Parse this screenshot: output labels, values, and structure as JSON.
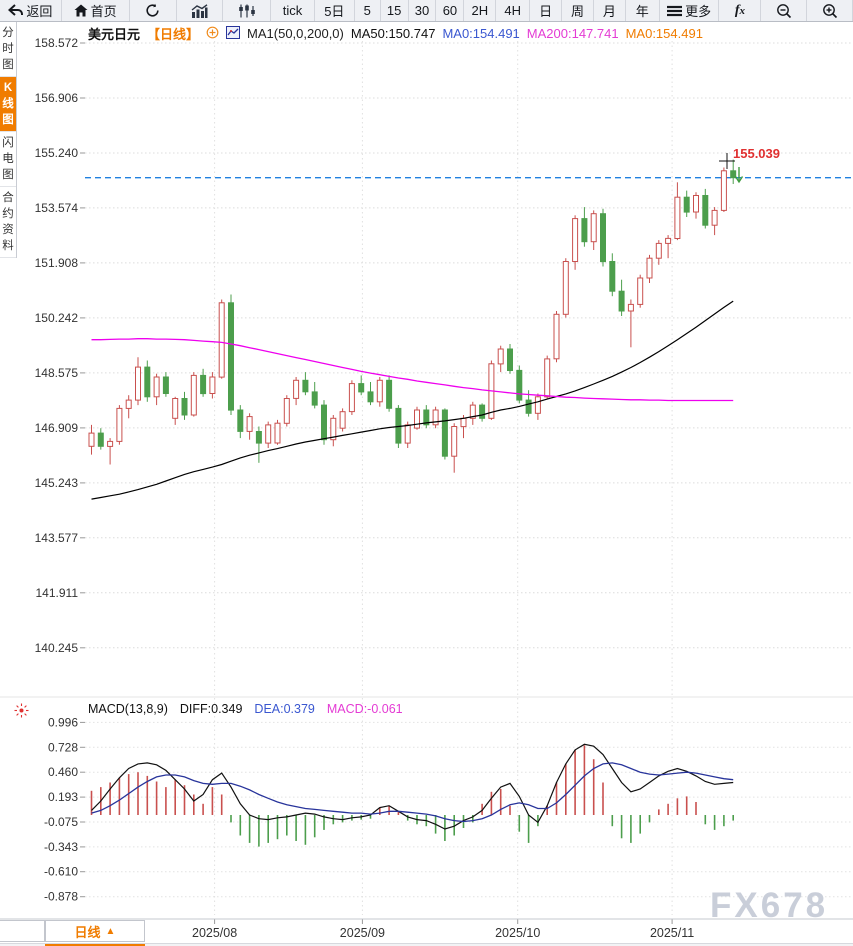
{
  "toolbar": {
    "items": [
      {
        "name": "back-button",
        "icon": "back-arrow",
        "label": "返回"
      },
      {
        "name": "home-button",
        "icon": "home",
        "label": "首页"
      },
      {
        "name": "refresh-button",
        "icon": "refresh",
        "label": ""
      },
      {
        "name": "line-chart-button",
        "icon": "bar-chart",
        "label": ""
      },
      {
        "name": "candle-chart-button",
        "icon": "candle-chart",
        "label": ""
      },
      {
        "name": "interval-tick",
        "label": "tick"
      },
      {
        "name": "interval-5d",
        "label": "5日"
      },
      {
        "name": "interval-5",
        "label": "5"
      },
      {
        "name": "interval-15",
        "label": "15"
      },
      {
        "name": "interval-30",
        "label": "30"
      },
      {
        "name": "interval-60",
        "label": "60"
      },
      {
        "name": "interval-2h",
        "label": "2H"
      },
      {
        "name": "interval-4h",
        "label": "4H"
      },
      {
        "name": "interval-day",
        "label": "日"
      },
      {
        "name": "interval-week",
        "label": "周"
      },
      {
        "name": "interval-month",
        "label": "月"
      },
      {
        "name": "interval-year",
        "label": "年"
      },
      {
        "name": "more-button",
        "icon": "menu",
        "label": "更多"
      },
      {
        "name": "indicator-button",
        "icon": "fx",
        "label": ""
      },
      {
        "name": "zoom-out-button",
        "icon": "zoom-out",
        "label": ""
      },
      {
        "name": "zoom-in-button",
        "icon": "zoom-in",
        "label": ""
      }
    ]
  },
  "symbol_bar": {
    "symbol": "美元日元",
    "period_tag": "【日线】",
    "ma_settings": "MA1(50,0,200,0)",
    "ma50_label": "MA50:150.747",
    "ma0_blue_label": "MA0:154.491",
    "ma200_label": "MA200:147.741",
    "ma0_orange_label": "MA0:154.491"
  },
  "sidebar": {
    "items": [
      {
        "label": "分时图",
        "selected": false
      },
      {
        "label": "K线图",
        "selected": true
      },
      {
        "label": "闪电图",
        "selected": false
      },
      {
        "label": "合约资料",
        "selected": false
      }
    ]
  },
  "macd_header": {
    "params": "MACD(13,8,9)",
    "diff": "DIFF:0.349",
    "dea": "DEA:0.379",
    "macd": "MACD:-0.061"
  },
  "bottom_bar": {
    "tab_label": "日线",
    "tab_arrow": "▲"
  },
  "watermark": "FX678",
  "chart_data": {
    "type": "candlestick+macd",
    "title": "美元日元 日线",
    "main": {
      "y_ticks": [
        158.572,
        156.906,
        155.24,
        153.574,
        151.908,
        150.242,
        148.575,
        146.909,
        145.243,
        143.577,
        141.911,
        140.245
      ],
      "last_price": 154.491,
      "high_label": "155.039",
      "high_value": 155.039,
      "up_color": "#c9504e",
      "down_color": "#4c9e4c",
      "ma50_color": "#000000",
      "ma200_color": "#ee00ee",
      "last_price_line_color": "#1f80e0",
      "high_label_color": "#e03030",
      "candles": [
        [
          146.35,
          147.0,
          146.1,
          146.75
        ],
        [
          146.75,
          146.9,
          146.25,
          146.35
        ],
        [
          146.35,
          146.6,
          145.8,
          146.5
        ],
        [
          146.5,
          147.6,
          146.4,
          147.5
        ],
        [
          147.5,
          147.9,
          147.2,
          147.75
        ],
        [
          147.75,
          149.05,
          147.6,
          148.75
        ],
        [
          148.75,
          148.95,
          147.7,
          147.85
        ],
        [
          147.85,
          148.55,
          147.6,
          148.45
        ],
        [
          148.45,
          148.6,
          147.85,
          147.95
        ],
        [
          147.2,
          147.85,
          147.0,
          147.8
        ],
        [
          147.8,
          148.0,
          147.15,
          147.3
        ],
        [
          147.3,
          148.6,
          147.25,
          148.5
        ],
        [
          148.5,
          148.7,
          147.85,
          147.95
        ],
        [
          147.95,
          148.6,
          147.8,
          148.45
        ],
        [
          148.45,
          150.8,
          148.4,
          150.7
        ],
        [
          150.7,
          150.95,
          147.3,
          147.45
        ],
        [
          147.45,
          147.6,
          146.6,
          146.8
        ],
        [
          146.8,
          147.35,
          146.55,
          147.25
        ],
        [
          146.8,
          146.95,
          145.85,
          146.45
        ],
        [
          146.45,
          147.1,
          146.3,
          147.0
        ],
        [
          146.45,
          147.15,
          146.4,
          147.05
        ],
        [
          147.05,
          147.9,
          146.95,
          147.8
        ],
        [
          147.8,
          148.45,
          147.6,
          148.35
        ],
        [
          148.35,
          148.6,
          147.9,
          148.0
        ],
        [
          148.0,
          148.3,
          147.5,
          147.6
        ],
        [
          147.6,
          147.75,
          146.4,
          146.55
        ],
        [
          146.55,
          147.3,
          146.35,
          147.2
        ],
        [
          146.9,
          147.5,
          146.8,
          147.4
        ],
        [
          147.4,
          148.35,
          147.3,
          148.25
        ],
        [
          148.25,
          148.5,
          147.9,
          148.0
        ],
        [
          148.0,
          148.3,
          147.6,
          147.7
        ],
        [
          147.7,
          148.45,
          147.55,
          148.35
        ],
        [
          148.35,
          148.5,
          147.4,
          147.5
        ],
        [
          147.5,
          147.6,
          146.3,
          146.45
        ],
        [
          146.45,
          147.1,
          146.3,
          147.0
        ],
        [
          146.9,
          147.55,
          146.85,
          147.45
        ],
        [
          147.45,
          147.6,
          146.9,
          147.0
        ],
        [
          147.0,
          147.55,
          146.9,
          147.45
        ],
        [
          147.45,
          147.5,
          145.95,
          146.05
        ],
        [
          146.05,
          147.05,
          145.55,
          146.95
        ],
        [
          146.95,
          147.3,
          146.6,
          147.2
        ],
        [
          147.2,
          147.7,
          147.0,
          147.6
        ],
        [
          147.6,
          147.65,
          147.1,
          147.2
        ],
        [
          147.2,
          148.95,
          147.15,
          148.85
        ],
        [
          148.85,
          149.4,
          148.6,
          149.3
        ],
        [
          149.3,
          149.45,
          148.55,
          148.65
        ],
        [
          148.65,
          148.8,
          147.65,
          147.75
        ],
        [
          147.75,
          148.05,
          147.25,
          147.35
        ],
        [
          147.35,
          147.95,
          147.15,
          147.85
        ],
        [
          147.85,
          149.1,
          147.8,
          149.0
        ],
        [
          149.0,
          150.45,
          148.9,
          150.35
        ],
        [
          150.35,
          152.05,
          150.25,
          151.95
        ],
        [
          151.95,
          153.35,
          151.7,
          153.25
        ],
        [
          153.25,
          153.6,
          152.4,
          152.55
        ],
        [
          152.55,
          153.5,
          152.3,
          153.4
        ],
        [
          153.4,
          153.55,
          151.8,
          151.95
        ],
        [
          151.95,
          152.2,
          150.9,
          151.05
        ],
        [
          151.05,
          151.4,
          150.3,
          150.45
        ],
        [
          150.45,
          150.8,
          149.35,
          150.65
        ],
        [
          150.65,
          151.55,
          150.55,
          151.45
        ],
        [
          151.45,
          152.15,
          151.3,
          152.05
        ],
        [
          152.05,
          152.6,
          151.85,
          152.5
        ],
        [
          152.5,
          152.75,
          152.05,
          152.65
        ],
        [
          152.65,
          154.35,
          152.6,
          153.9
        ],
        [
          153.9,
          154.1,
          153.3,
          153.45
        ],
        [
          153.45,
          154.05,
          153.25,
          153.95
        ],
        [
          153.95,
          154.15,
          152.95,
          153.05
        ],
        [
          153.05,
          153.6,
          152.75,
          153.5
        ],
        [
          153.5,
          154.8,
          153.45,
          154.7
        ],
        [
          154.7,
          155.04,
          154.3,
          154.49
        ]
      ],
      "ma50": [
        144.75,
        144.8,
        144.85,
        144.9,
        144.97,
        145.04,
        145.12,
        145.2,
        145.3,
        145.4,
        145.5,
        145.58,
        145.65,
        145.72,
        145.8,
        145.9,
        146.0,
        146.08,
        146.15,
        146.22,
        146.28,
        146.35,
        146.42,
        146.48,
        146.53,
        146.58,
        146.63,
        146.68,
        146.73,
        146.78,
        146.83,
        146.88,
        146.92,
        146.95,
        146.98,
        147.02,
        147.06,
        147.09,
        147.12,
        147.16,
        147.2,
        147.25,
        147.3,
        147.38,
        147.45,
        147.5,
        147.56,
        147.63,
        147.7,
        147.78,
        147.86,
        147.94,
        148.03,
        148.13,
        148.24,
        148.35,
        148.47,
        148.6,
        148.74,
        148.89,
        149.05,
        149.22,
        149.4,
        149.58,
        149.77,
        149.96,
        150.16,
        150.36,
        150.56,
        150.75
      ],
      "ma200": [
        149.58,
        149.58,
        149.59,
        149.6,
        149.6,
        149.61,
        149.61,
        149.6,
        149.6,
        149.59,
        149.58,
        149.56,
        149.54,
        149.52,
        149.5,
        149.45,
        149.4,
        149.34,
        149.28,
        149.22,
        149.16,
        149.1,
        149.04,
        148.98,
        148.92,
        148.86,
        148.8,
        148.74,
        148.68,
        148.62,
        148.57,
        148.52,
        148.47,
        148.42,
        148.38,
        148.33,
        148.29,
        148.25,
        148.21,
        148.17,
        148.13,
        148.1,
        148.06,
        148.03,
        148.0,
        147.97,
        147.94,
        147.92,
        147.9,
        147.88,
        147.86,
        147.84,
        147.83,
        147.81,
        147.8,
        147.79,
        147.78,
        147.77,
        147.76,
        147.76,
        147.75,
        147.75,
        147.74,
        147.74,
        147.74,
        147.74,
        147.74,
        147.74,
        147.74,
        147.74
      ]
    },
    "x_ticks": [
      {
        "label": "2025/08",
        "i": 13.5
      },
      {
        "label": "2025/09",
        "i": 29.4
      },
      {
        "label": "2025/10",
        "i": 46.1
      },
      {
        "label": "2025/11",
        "i": 62.7
      }
    ],
    "macd": {
      "y_ticks": [
        0.996,
        0.728,
        0.46,
        0.193,
        -0.075,
        -0.343,
        -0.61,
        -0.878
      ],
      "diff_color": "#111111",
      "dea_color": "#28349b",
      "hist_up_color": "#c9504e",
      "hist_down_color": "#4c9e4c",
      "hist": [
        0.26,
        0.3,
        0.35,
        0.4,
        0.44,
        0.46,
        0.42,
        0.36,
        0.3,
        0.38,
        0.32,
        0.22,
        0.12,
        0.3,
        0.22,
        -0.08,
        -0.22,
        -0.3,
        -0.34,
        -0.3,
        -0.26,
        -0.22,
        -0.28,
        -0.32,
        -0.24,
        -0.16,
        -0.1,
        -0.08,
        -0.06,
        -0.05,
        -0.04,
        0.08,
        0.1,
        0.04,
        -0.06,
        -0.1,
        -0.12,
        -0.2,
        -0.28,
        -0.22,
        -0.14,
        -0.08,
        0.12,
        0.25,
        0.28,
        0.1,
        -0.18,
        -0.3,
        -0.12,
        0.1,
        0.35,
        0.55,
        0.7,
        0.75,
        0.6,
        0.35,
        -0.12,
        -0.25,
        -0.3,
        -0.2,
        -0.08,
        0.06,
        0.12,
        0.18,
        0.2,
        0.14,
        -0.1,
        -0.16,
        -0.12,
        -0.06
      ],
      "diff": [
        0.05,
        0.15,
        0.28,
        0.4,
        0.5,
        0.55,
        0.56,
        0.54,
        0.48,
        0.38,
        0.28,
        0.15,
        0.22,
        0.38,
        0.45,
        0.3,
        0.12,
        0.0,
        -0.04,
        -0.05,
        -0.03,
        -0.02,
        0.0,
        0.02,
        0.01,
        -0.02,
        -0.04,
        -0.05,
        -0.03,
        -0.02,
        0.0,
        0.08,
        0.1,
        0.04,
        -0.02,
        -0.05,
        -0.06,
        -0.1,
        -0.15,
        -0.12,
        -0.06,
        -0.02,
        0.05,
        0.18,
        0.3,
        0.34,
        0.2,
        0.0,
        -0.08,
        0.1,
        0.35,
        0.55,
        0.7,
        0.76,
        0.74,
        0.65,
        0.5,
        0.35,
        0.25,
        0.28,
        0.35,
        0.42,
        0.47,
        0.5,
        0.47,
        0.42,
        0.36,
        0.33,
        0.34,
        0.35
      ],
      "dea": [
        0.02,
        0.05,
        0.1,
        0.16,
        0.23,
        0.3,
        0.36,
        0.41,
        0.43,
        0.43,
        0.41,
        0.37,
        0.34,
        0.33,
        0.34,
        0.34,
        0.31,
        0.27,
        0.22,
        0.18,
        0.14,
        0.11,
        0.09,
        0.07,
        0.06,
        0.05,
        0.04,
        0.03,
        0.02,
        0.02,
        0.01,
        0.02,
        0.04,
        0.04,
        0.03,
        0.02,
        0.01,
        -0.01,
        -0.04,
        -0.06,
        -0.07,
        -0.06,
        -0.04,
        0.0,
        0.06,
        0.11,
        0.13,
        0.11,
        0.07,
        0.07,
        0.13,
        0.22,
        0.32,
        0.42,
        0.5,
        0.55,
        0.56,
        0.54,
        0.5,
        0.46,
        0.44,
        0.43,
        0.44,
        0.45,
        0.46,
        0.45,
        0.43,
        0.41,
        0.39,
        0.38
      ]
    }
  }
}
